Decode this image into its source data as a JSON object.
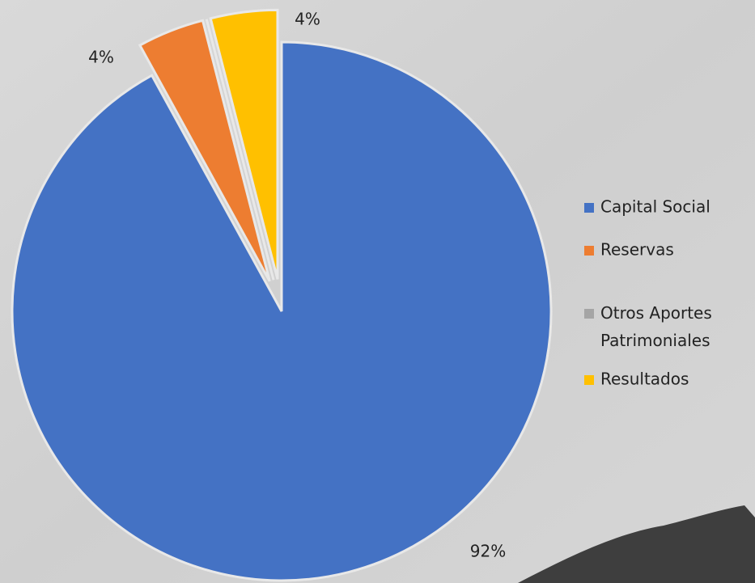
{
  "chart_data": {
    "type": "pie",
    "categories": [
      "Capital Social",
      "Reservas",
      "Otros Aportes Patrimoniales",
      "Resultados"
    ],
    "values": [
      92,
      4,
      0,
      4
    ],
    "value_labels": [
      "92%",
      "4%",
      null,
      "4%"
    ],
    "colors": [
      "#4472c4",
      "#ed7d31",
      "#a5a5a5",
      "#ffc000"
    ],
    "legend": "right"
  }
}
